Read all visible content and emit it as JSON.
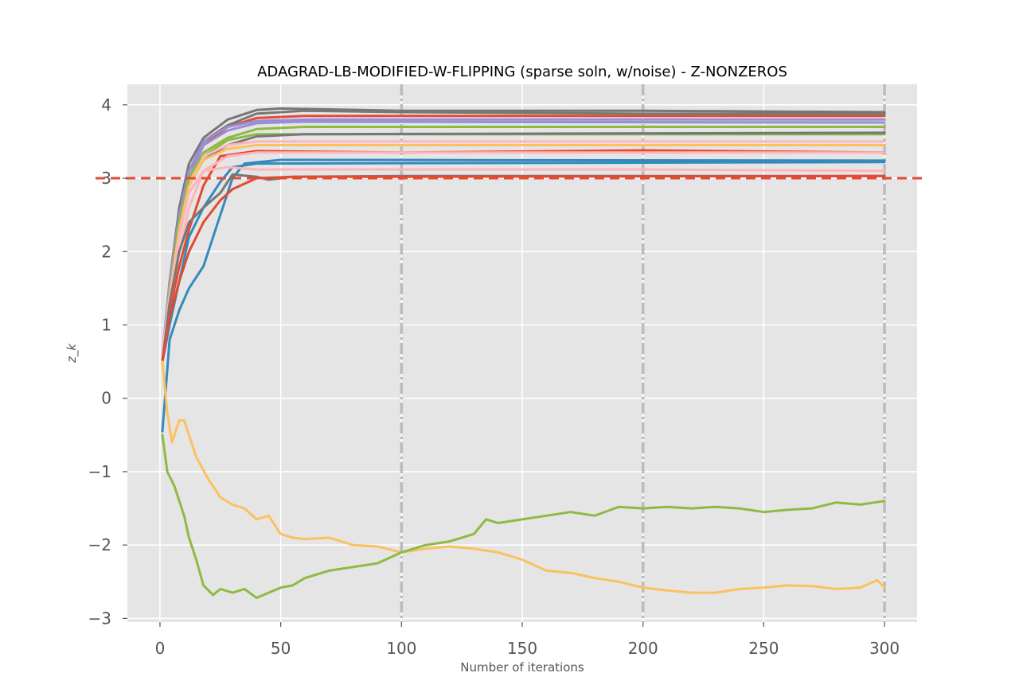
{
  "chart_data": {
    "type": "line",
    "title": "ADAGRAD-LB-MODIFIED-W-FLIPPING (sparse soln, w/noise) - Z-NONZEROS",
    "xlabel": "Number of iterations",
    "ylabel": "z_k",
    "xlim": [
      -13.5,
      313.5
    ],
    "ylim": [
      -3.05,
      4.28
    ],
    "xticks": [
      0,
      50,
      100,
      150,
      200,
      250,
      300
    ],
    "xtick_labels": [
      "0",
      "50",
      "100",
      "150",
      "200",
      "250",
      "300"
    ],
    "yticks": [
      -3,
      -2,
      -1,
      0,
      1,
      2,
      3,
      4
    ],
    "ytick_labels": [
      "−3",
      "−2",
      "−1",
      "0",
      "1",
      "2",
      "3",
      "4"
    ],
    "grid": true,
    "style": "ggplot",
    "reference_line": {
      "y": 3,
      "style": "dashed",
      "color": "#E24A33"
    },
    "vertical_markers": {
      "x": [
        100,
        200,
        300
      ],
      "style": "dash-dot",
      "color": "#BBBBBB"
    },
    "series": [
      {
        "color": "#E24A33",
        "values": [
          [
            1,
            0.5
          ],
          [
            4,
            1.5
          ],
          [
            8,
            2.5
          ],
          [
            12,
            3.1
          ],
          [
            18,
            3.45
          ],
          [
            28,
            3.7
          ],
          [
            40,
            3.82
          ],
          [
            60,
            3.85
          ],
          [
            300,
            3.85
          ]
        ]
      },
      {
        "color": "#777777",
        "values": [
          [
            1,
            0.5
          ],
          [
            4,
            1.6
          ],
          [
            8,
            2.6
          ],
          [
            12,
            3.2
          ],
          [
            18,
            3.55
          ],
          [
            28,
            3.8
          ],
          [
            40,
            3.93
          ],
          [
            50,
            3.95
          ],
          [
            100,
            3.92
          ],
          [
            200,
            3.92
          ],
          [
            300,
            3.9
          ]
        ]
      },
      {
        "color": "#777777",
        "values": [
          [
            1,
            0.5
          ],
          [
            4,
            1.5
          ],
          [
            8,
            2.5
          ],
          [
            12,
            3.1
          ],
          [
            18,
            3.5
          ],
          [
            28,
            3.72
          ],
          [
            40,
            3.88
          ],
          [
            60,
            3.92
          ],
          [
            100,
            3.9
          ],
          [
            200,
            3.88
          ],
          [
            300,
            3.88
          ]
        ]
      },
      {
        "color": "#988ED5",
        "values": [
          [
            1,
            0.6
          ],
          [
            4,
            1.6
          ],
          [
            8,
            2.5
          ],
          [
            12,
            3.1
          ],
          [
            18,
            3.5
          ],
          [
            28,
            3.7
          ],
          [
            40,
            3.78
          ],
          [
            60,
            3.8
          ],
          [
            300,
            3.8
          ]
        ]
      },
      {
        "color": "#988ED5",
        "values": [
          [
            1,
            0.6
          ],
          [
            4,
            1.5
          ],
          [
            8,
            2.4
          ],
          [
            12,
            3.0
          ],
          [
            18,
            3.45
          ],
          [
            28,
            3.65
          ],
          [
            40,
            3.75
          ],
          [
            60,
            3.77
          ],
          [
            300,
            3.76
          ]
        ]
      },
      {
        "color": "#8EBA42",
        "values": [
          [
            1,
            0.5
          ],
          [
            4,
            1.5
          ],
          [
            8,
            2.4
          ],
          [
            12,
            3.0
          ],
          [
            18,
            3.35
          ],
          [
            28,
            3.55
          ],
          [
            40,
            3.67
          ],
          [
            60,
            3.7
          ],
          [
            300,
            3.7
          ]
        ]
      },
      {
        "color": "#8EBA42",
        "values": [
          [
            1,
            0.5
          ],
          [
            4,
            1.4
          ],
          [
            8,
            2.3
          ],
          [
            12,
            2.9
          ],
          [
            18,
            3.3
          ],
          [
            28,
            3.52
          ],
          [
            40,
            3.6
          ],
          [
            60,
            3.6
          ],
          [
            300,
            3.6
          ]
        ]
      },
      {
        "color": "#777777",
        "values": [
          [
            1,
            0.5
          ],
          [
            4,
            1.4
          ],
          [
            8,
            2.3
          ],
          [
            12,
            2.9
          ],
          [
            18,
            3.25
          ],
          [
            28,
            3.45
          ],
          [
            40,
            3.57
          ],
          [
            60,
            3.6
          ],
          [
            300,
            3.62
          ]
        ]
      },
      {
        "color": "#FFB5B8",
        "values": [
          [
            1,
            0.6
          ],
          [
            4,
            1.4
          ],
          [
            8,
            2.3
          ],
          [
            12,
            2.9
          ],
          [
            18,
            3.3
          ],
          [
            28,
            3.45
          ],
          [
            40,
            3.5
          ],
          [
            300,
            3.5
          ]
        ]
      },
      {
        "color": "#FBC15E",
        "values": [
          [
            1,
            0.6
          ],
          [
            4,
            1.4
          ],
          [
            8,
            2.3
          ],
          [
            12,
            2.9
          ],
          [
            18,
            3.25
          ],
          [
            28,
            3.4
          ],
          [
            40,
            3.45
          ],
          [
            300,
            3.45
          ]
        ]
      },
      {
        "color": "#E24A33",
        "values": [
          [
            1,
            0.5
          ],
          [
            4,
            1.2
          ],
          [
            8,
            1.8
          ],
          [
            12,
            2.3
          ],
          [
            18,
            2.9
          ],
          [
            25,
            3.3
          ],
          [
            40,
            3.37
          ],
          [
            100,
            3.35
          ],
          [
            200,
            3.38
          ],
          [
            300,
            3.35
          ]
        ]
      },
      {
        "color": "#FFB5B8",
        "values": [
          [
            1,
            0.6
          ],
          [
            4,
            1.3
          ],
          [
            8,
            2.0
          ],
          [
            12,
            2.6
          ],
          [
            18,
            3.1
          ],
          [
            28,
            3.3
          ],
          [
            40,
            3.35
          ],
          [
            300,
            3.35
          ]
        ]
      },
      {
        "color": "#348ABD",
        "values": [
          [
            1,
            -0.45
          ],
          [
            4,
            0.8
          ],
          [
            8,
            1.2
          ],
          [
            12,
            1.5
          ],
          [
            18,
            1.8
          ],
          [
            25,
            2.5
          ],
          [
            30,
            3.0
          ],
          [
            35,
            3.2
          ],
          [
            50,
            3.25
          ],
          [
            300,
            3.24
          ]
        ]
      },
      {
        "color": "#348ABD",
        "values": [
          [
            1,
            0.5
          ],
          [
            4,
            1.0
          ],
          [
            8,
            1.6
          ],
          [
            12,
            2.2
          ],
          [
            18,
            2.6
          ],
          [
            25,
            2.95
          ],
          [
            30,
            3.15
          ],
          [
            40,
            3.2
          ],
          [
            300,
            3.22
          ]
        ]
      },
      {
        "color": "#FFB5B8",
        "values": [
          [
            1,
            0.6
          ],
          [
            4,
            1.4
          ],
          [
            8,
            2.2
          ],
          [
            12,
            2.8
          ],
          [
            18,
            3.1
          ],
          [
            28,
            3.15
          ],
          [
            40,
            3.12
          ],
          [
            100,
            3.12
          ],
          [
            200,
            3.12
          ],
          [
            300,
            3.1
          ]
        ]
      },
      {
        "color": "#777777",
        "values": [
          [
            1,
            0.5
          ],
          [
            4,
            1.3
          ],
          [
            8,
            2.0
          ],
          [
            12,
            2.4
          ],
          [
            18,
            2.6
          ],
          [
            25,
            2.8
          ],
          [
            30,
            3.05
          ],
          [
            40,
            3.02
          ],
          [
            45,
            2.98
          ],
          [
            55,
            3.02
          ],
          [
            100,
            3.03
          ],
          [
            300,
            3.03
          ]
        ]
      },
      {
        "color": "#E24A33",
        "values": [
          [
            1,
            0.5
          ],
          [
            4,
            1.1
          ],
          [
            8,
            1.6
          ],
          [
            12,
            2.0
          ],
          [
            18,
            2.4
          ],
          [
            25,
            2.7
          ],
          [
            30,
            2.85
          ],
          [
            40,
            3.0
          ],
          [
            55,
            3.02
          ],
          [
            100,
            3.02
          ],
          [
            300,
            3.03
          ]
        ]
      },
      {
        "color": "#FBC15E",
        "values": [
          [
            1,
            0.5
          ],
          [
            3,
            -0.2
          ],
          [
            5,
            -0.6
          ],
          [
            8,
            -0.3
          ],
          [
            10,
            -0.3
          ],
          [
            12,
            -0.5
          ],
          [
            15,
            -0.8
          ],
          [
            20,
            -1.1
          ],
          [
            25,
            -1.35
          ],
          [
            30,
            -1.45
          ],
          [
            35,
            -1.5
          ],
          [
            40,
            -1.65
          ],
          [
            45,
            -1.6
          ],
          [
            50,
            -1.85
          ],
          [
            55,
            -1.9
          ],
          [
            60,
            -1.92
          ],
          [
            70,
            -1.9
          ],
          [
            80,
            -2.0
          ],
          [
            90,
            -2.02
          ],
          [
            100,
            -2.1
          ],
          [
            110,
            -2.05
          ],
          [
            120,
            -2.02
          ],
          [
            130,
            -2.05
          ],
          [
            140,
            -2.1
          ],
          [
            150,
            -2.2
          ],
          [
            160,
            -2.35
          ],
          [
            170,
            -2.38
          ],
          [
            180,
            -2.45
          ],
          [
            190,
            -2.5
          ],
          [
            200,
            -2.58
          ],
          [
            210,
            -2.62
          ],
          [
            220,
            -2.65
          ],
          [
            230,
            -2.65
          ],
          [
            240,
            -2.6
          ],
          [
            250,
            -2.58
          ],
          [
            260,
            -2.55
          ],
          [
            270,
            -2.56
          ],
          [
            280,
            -2.6
          ],
          [
            290,
            -2.58
          ],
          [
            297,
            -2.48
          ],
          [
            300,
            -2.58
          ]
        ]
      },
      {
        "color": "#8EBA42",
        "values": [
          [
            1,
            -0.5
          ],
          [
            3,
            -1.0
          ],
          [
            6,
            -1.2
          ],
          [
            10,
            -1.6
          ],
          [
            12,
            -1.9
          ],
          [
            15,
            -2.2
          ],
          [
            18,
            -2.55
          ],
          [
            22,
            -2.68
          ],
          [
            25,
            -2.6
          ],
          [
            30,
            -2.65
          ],
          [
            35,
            -2.6
          ],
          [
            40,
            -2.72
          ],
          [
            45,
            -2.65
          ],
          [
            50,
            -2.58
          ],
          [
            55,
            -2.55
          ],
          [
            60,
            -2.45
          ],
          [
            70,
            -2.35
          ],
          [
            80,
            -2.3
          ],
          [
            90,
            -2.25
          ],
          [
            100,
            -2.1
          ],
          [
            110,
            -2.0
          ],
          [
            120,
            -1.95
          ],
          [
            130,
            -1.85
          ],
          [
            135,
            -1.65
          ],
          [
            140,
            -1.7
          ],
          [
            150,
            -1.65
          ],
          [
            160,
            -1.6
          ],
          [
            170,
            -1.55
          ],
          [
            180,
            -1.6
          ],
          [
            190,
            -1.48
          ],
          [
            200,
            -1.5
          ],
          [
            210,
            -1.48
          ],
          [
            220,
            -1.5
          ],
          [
            230,
            -1.48
          ],
          [
            240,
            -1.5
          ],
          [
            250,
            -1.55
          ],
          [
            260,
            -1.52
          ],
          [
            270,
            -1.5
          ],
          [
            280,
            -1.42
          ],
          [
            290,
            -1.45
          ],
          [
            300,
            -1.4
          ]
        ]
      }
    ]
  }
}
